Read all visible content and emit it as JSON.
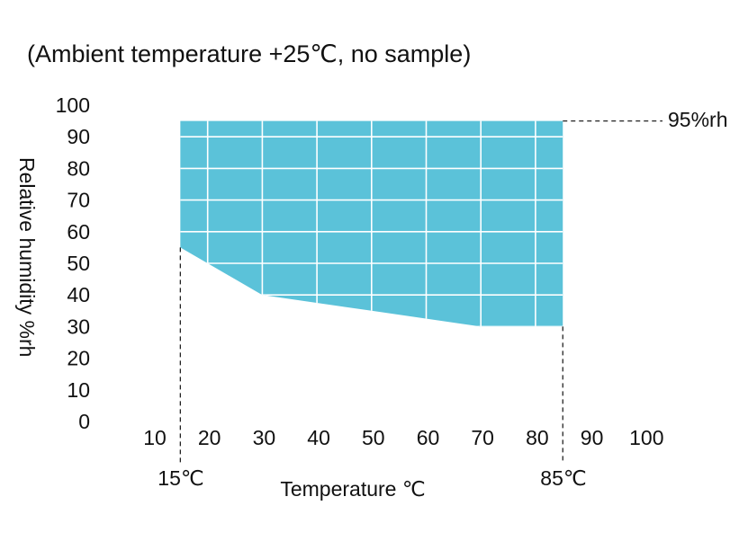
{
  "chart_data": {
    "type": "area",
    "note": "(Ambient temperature +25℃, no sample)",
    "xlabel": "Temperature ℃",
    "ylabel": "Relative humidity %rh",
    "xlim": [
      10,
      100
    ],
    "ylim": [
      0,
      100
    ],
    "x_ticks": [
      "10",
      "20",
      "30",
      "40",
      "50",
      "60",
      "70",
      "80",
      "90",
      "100"
    ],
    "y_ticks": [
      "0",
      "10",
      "20",
      "30",
      "40",
      "50",
      "60",
      "70",
      "80",
      "90",
      "100"
    ],
    "grid": "inside shaded region only",
    "series": [
      {
        "fill_color": "#5bc2d9",
        "upper": {
          "x": [
            15,
            85
          ],
          "y": [
            95,
            95
          ]
        },
        "lower": {
          "x": [
            15,
            20,
            30,
            50,
            70,
            85
          ],
          "y": [
            55,
            50,
            40,
            35,
            30,
            30
          ]
        }
      }
    ],
    "markers": {
      "left_temp_label": "15℃",
      "right_temp_label": "85℃",
      "max_humidity_label": "95%rh",
      "left_temp": 15,
      "right_temp": 85,
      "max_humidity": 95
    }
  }
}
